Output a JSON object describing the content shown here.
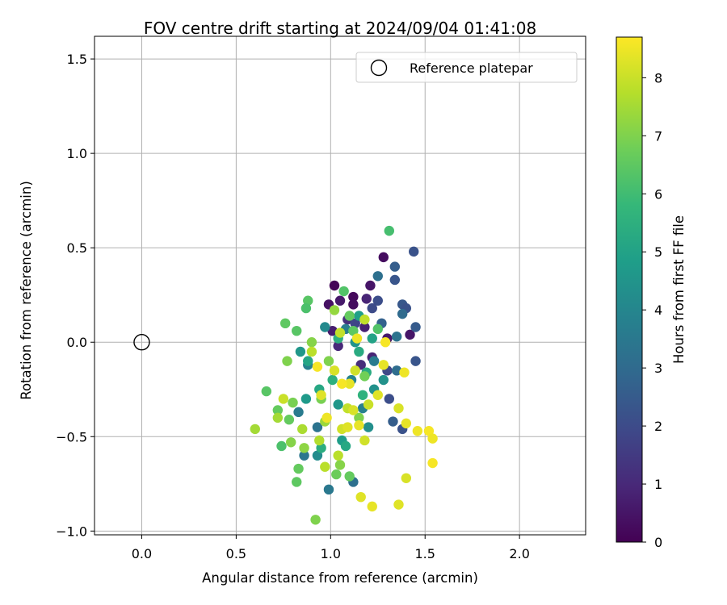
{
  "chart_data": {
    "type": "scatter",
    "title": "FOV centre drift starting at 2024/09/04 01:41:08",
    "xlabel": "Angular distance from reference (arcmin)",
    "ylabel": "Rotation from reference (arcmin)",
    "xlim": [
      -0.25,
      2.35
    ],
    "ylim": [
      -1.02,
      1.62
    ],
    "x_ticks": [
      0.0,
      0.5,
      1.0,
      1.5,
      2.0
    ],
    "x_tick_labels": [
      "0.0",
      "0.5",
      "1.0",
      "1.5",
      "2.0"
    ],
    "y_ticks": [
      -1.0,
      -0.5,
      0.0,
      0.5,
      1.0,
      1.5
    ],
    "y_tick_labels": [
      "−1.0",
      "−0.5",
      "0.0",
      "0.5",
      "1.0",
      "1.5"
    ],
    "grid": true,
    "colormap": "viridis",
    "colorbar": {
      "label": "Hours from first FF file",
      "range": [
        0,
        8.7
      ],
      "ticks": [
        0,
        1,
        2,
        3,
        4,
        5,
        6,
        7,
        8
      ],
      "tick_labels": [
        "0",
        "1",
        "2",
        "3",
        "4",
        "5",
        "6",
        "7",
        "8"
      ]
    },
    "legend": {
      "placement": "top-right",
      "entries": [
        "Reference platepar"
      ]
    },
    "reference_point": {
      "x": 0.0,
      "y": 0.0,
      "label": "Reference platepar"
    },
    "points": [
      {
        "x": 1.02,
        "y": 0.3,
        "c": 0.1
      },
      {
        "x": 1.28,
        "y": 0.45,
        "c": 0.3
      },
      {
        "x": 1.21,
        "y": 0.3,
        "c": 0.5
      },
      {
        "x": 1.12,
        "y": 0.24,
        "c": 0.2
      },
      {
        "x": 1.05,
        "y": 0.22,
        "c": 0.6
      },
      {
        "x": 0.99,
        "y": 0.2,
        "c": 0.4
      },
      {
        "x": 1.12,
        "y": 0.2,
        "c": 0.3
      },
      {
        "x": 1.19,
        "y": 0.23,
        "c": 0.9
      },
      {
        "x": 1.42,
        "y": 0.04,
        "c": 0.5
      },
      {
        "x": 1.01,
        "y": 0.06,
        "c": 0.7
      },
      {
        "x": 1.04,
        "y": -0.02,
        "c": 1.0
      },
      {
        "x": 1.18,
        "y": 0.08,
        "c": 0.8
      },
      {
        "x": 1.3,
        "y": 0.02,
        "c": 0.6
      },
      {
        "x": 1.09,
        "y": 0.12,
        "c": 1.2
      },
      {
        "x": 1.16,
        "y": -0.12,
        "c": 1.1
      },
      {
        "x": 1.22,
        "y": -0.08,
        "c": 0.9
      },
      {
        "x": 1.44,
        "y": 0.48,
        "c": 2.2
      },
      {
        "x": 1.34,
        "y": 0.4,
        "c": 2.6
      },
      {
        "x": 1.34,
        "y": 0.33,
        "c": 2.3
      },
      {
        "x": 1.25,
        "y": 0.22,
        "c": 2.1
      },
      {
        "x": 1.38,
        "y": 0.2,
        "c": 2.4
      },
      {
        "x": 1.4,
        "y": 0.18,
        "c": 2.2
      },
      {
        "x": 1.45,
        "y": 0.08,
        "c": 2.5
      },
      {
        "x": 1.45,
        "y": -0.1,
        "c": 2.3
      },
      {
        "x": 1.22,
        "y": 0.18,
        "c": 2.0
      },
      {
        "x": 1.27,
        "y": 0.1,
        "c": 2.7
      },
      {
        "x": 1.13,
        "y": 0.1,
        "c": 1.8
      },
      {
        "x": 1.3,
        "y": -0.15,
        "c": 1.9
      },
      {
        "x": 1.33,
        "y": -0.42,
        "c": 2.6
      },
      {
        "x": 1.38,
        "y": -0.46,
        "c": 2.2
      },
      {
        "x": 1.31,
        "y": -0.3,
        "c": 2.1
      },
      {
        "x": 1.25,
        "y": 0.35,
        "c": 3.2
      },
      {
        "x": 1.38,
        "y": 0.15,
        "c": 3.0
      },
      {
        "x": 1.35,
        "y": 0.03,
        "c": 3.3
      },
      {
        "x": 1.35,
        "y": -0.15,
        "c": 3.1
      },
      {
        "x": 1.23,
        "y": -0.1,
        "c": 3.6
      },
      {
        "x": 0.86,
        "y": -0.6,
        "c": 3.4
      },
      {
        "x": 0.99,
        "y": -0.78,
        "c": 3.5
      },
      {
        "x": 1.12,
        "y": -0.74,
        "c": 3.2
      },
      {
        "x": 0.88,
        "y": -0.12,
        "c": 3.8
      },
      {
        "x": 1.08,
        "y": 0.07,
        "c": 3.7
      },
      {
        "x": 1.11,
        "y": -0.2,
        "c": 3.9
      },
      {
        "x": 0.93,
        "y": -0.45,
        "c": 3.3
      },
      {
        "x": 0.83,
        "y": -0.37,
        "c": 3.6
      },
      {
        "x": 1.17,
        "y": -0.35,
        "c": 3.8
      },
      {
        "x": 1.2,
        "y": -0.45,
        "c": 4.3
      },
      {
        "x": 1.13,
        "y": 0.0,
        "c": 4.5
      },
      {
        "x": 1.23,
        "y": -0.25,
        "c": 4.4
      },
      {
        "x": 1.04,
        "y": -0.33,
        "c": 4.6
      },
      {
        "x": 0.93,
        "y": -0.6,
        "c": 4.2
      },
      {
        "x": 0.87,
        "y": -0.3,
        "c": 4.7
      },
      {
        "x": 1.06,
        "y": -0.52,
        "c": 4.8
      },
      {
        "x": 1.15,
        "y": 0.14,
        "c": 4.9
      },
      {
        "x": 0.97,
        "y": 0.08,
        "c": 4.1
      },
      {
        "x": 1.28,
        "y": -0.2,
        "c": 4.4
      },
      {
        "x": 0.84,
        "y": -0.05,
        "c": 4.6
      },
      {
        "x": 1.22,
        "y": 0.02,
        "c": 5.0
      },
      {
        "x": 1.19,
        "y": -0.16,
        "c": 5.3
      },
      {
        "x": 1.08,
        "y": -0.55,
        "c": 5.2
      },
      {
        "x": 0.95,
        "y": -0.56,
        "c": 5.4
      },
      {
        "x": 0.88,
        "y": -0.1,
        "c": 5.1
      },
      {
        "x": 1.04,
        "y": 0.02,
        "c": 5.5
      },
      {
        "x": 1.17,
        "y": -0.28,
        "c": 5.6
      },
      {
        "x": 0.94,
        "y": -0.25,
        "c": 5.2
      },
      {
        "x": 1.15,
        "y": -0.05,
        "c": 5.3
      },
      {
        "x": 1.01,
        "y": -0.2,
        "c": 5.5
      },
      {
        "x": 1.31,
        "y": 0.59,
        "c": 6.1
      },
      {
        "x": 1.07,
        "y": 0.27,
        "c": 6.3
      },
      {
        "x": 0.88,
        "y": 0.22,
        "c": 6.4
      },
      {
        "x": 0.87,
        "y": 0.18,
        "c": 6.2
      },
      {
        "x": 0.76,
        "y": 0.1,
        "c": 6.5
      },
      {
        "x": 0.82,
        "y": 0.06,
        "c": 6.4
      },
      {
        "x": 1.1,
        "y": 0.14,
        "c": 6.6
      },
      {
        "x": 1.25,
        "y": 0.07,
        "c": 6.3
      },
      {
        "x": 1.12,
        "y": 0.06,
        "c": 6.5
      },
      {
        "x": 0.66,
        "y": -0.26,
        "c": 6.4
      },
      {
        "x": 0.72,
        "y": -0.36,
        "c": 6.6
      },
      {
        "x": 0.74,
        "y": -0.55,
        "c": 6.2
      },
      {
        "x": 0.83,
        "y": -0.67,
        "c": 6.6
      },
      {
        "x": 0.82,
        "y": -0.74,
        "c": 6.5
      },
      {
        "x": 1.1,
        "y": -0.71,
        "c": 6.6
      },
      {
        "x": 0.78,
        "y": -0.41,
        "c": 6.6
      },
      {
        "x": 1.03,
        "y": -0.7,
        "c": 6.7
      },
      {
        "x": 1.18,
        "y": -0.18,
        "c": 6.8
      },
      {
        "x": 0.95,
        "y": -0.3,
        "c": 6.9
      },
      {
        "x": 0.99,
        "y": -0.1,
        "c": 7.0
      },
      {
        "x": 0.92,
        "y": -0.94,
        "c": 7.0
      },
      {
        "x": 1.05,
        "y": -0.65,
        "c": 7.1
      },
      {
        "x": 0.79,
        "y": -0.53,
        "c": 7.1
      },
      {
        "x": 0.86,
        "y": -0.56,
        "c": 7.2
      },
      {
        "x": 0.8,
        "y": -0.32,
        "c": 6.9
      },
      {
        "x": 0.77,
        "y": -0.1,
        "c": 7.0
      },
      {
        "x": 0.9,
        "y": 0.0,
        "c": 7.1
      },
      {
        "x": 1.02,
        "y": 0.17,
        "c": 7.3
      },
      {
        "x": 1.15,
        "y": -0.4,
        "c": 7.0
      },
      {
        "x": 0.97,
        "y": -0.42,
        "c": 7.4
      },
      {
        "x": 0.6,
        "y": -0.46,
        "c": 7.5
      },
      {
        "x": 0.72,
        "y": -0.4,
        "c": 7.5
      },
      {
        "x": 0.85,
        "y": -0.46,
        "c": 7.6
      },
      {
        "x": 0.94,
        "y": -0.52,
        "c": 7.7
      },
      {
        "x": 1.04,
        "y": -0.6,
        "c": 7.8
      },
      {
        "x": 0.97,
        "y": -0.66,
        "c": 7.8
      },
      {
        "x": 1.09,
        "y": -0.35,
        "c": 7.9
      },
      {
        "x": 0.9,
        "y": -0.05,
        "c": 7.8
      },
      {
        "x": 1.05,
        "y": 0.05,
        "c": 7.9
      },
      {
        "x": 1.18,
        "y": 0.12,
        "c": 7.9
      },
      {
        "x": 0.75,
        "y": -0.3,
        "c": 8.0
      },
      {
        "x": 1.06,
        "y": -0.46,
        "c": 8.1
      },
      {
        "x": 1.18,
        "y": -0.52,
        "c": 8.1
      },
      {
        "x": 1.12,
        "y": -0.36,
        "c": 8.2
      },
      {
        "x": 1.16,
        "y": -0.82,
        "c": 8.3
      },
      {
        "x": 1.22,
        "y": -0.87,
        "c": 8.4
      },
      {
        "x": 1.36,
        "y": -0.86,
        "c": 8.3
      },
      {
        "x": 1.4,
        "y": -0.72,
        "c": 8.2
      },
      {
        "x": 1.36,
        "y": -0.35,
        "c": 8.2
      },
      {
        "x": 1.4,
        "y": -0.43,
        "c": 8.4
      },
      {
        "x": 1.46,
        "y": -0.47,
        "c": 8.5
      },
      {
        "x": 1.52,
        "y": -0.47,
        "c": 8.6
      },
      {
        "x": 1.54,
        "y": -0.51,
        "c": 8.5
      },
      {
        "x": 1.54,
        "y": -0.64,
        "c": 8.6
      },
      {
        "x": 1.39,
        "y": -0.16,
        "c": 8.5
      },
      {
        "x": 1.28,
        "y": -0.12,
        "c": 8.4
      },
      {
        "x": 1.25,
        "y": -0.28,
        "c": 8.3
      },
      {
        "x": 1.1,
        "y": -0.22,
        "c": 8.4
      },
      {
        "x": 1.06,
        "y": -0.22,
        "c": 8.6
      },
      {
        "x": 1.14,
        "y": 0.02,
        "c": 8.5
      },
      {
        "x": 1.29,
        "y": 0.0,
        "c": 8.6
      },
      {
        "x": 0.95,
        "y": -0.28,
        "c": 8.3
      },
      {
        "x": 0.98,
        "y": -0.4,
        "c": 8.5
      },
      {
        "x": 1.15,
        "y": -0.44,
        "c": 8.4
      },
      {
        "x": 0.93,
        "y": -0.13,
        "c": 8.6
      },
      {
        "x": 1.02,
        "y": -0.15,
        "c": 8.2
      },
      {
        "x": 1.13,
        "y": -0.15,
        "c": 8.1
      },
      {
        "x": 1.2,
        "y": -0.33,
        "c": 8.0
      },
      {
        "x": 1.09,
        "y": -0.45,
        "c": 8.3
      }
    ]
  }
}
